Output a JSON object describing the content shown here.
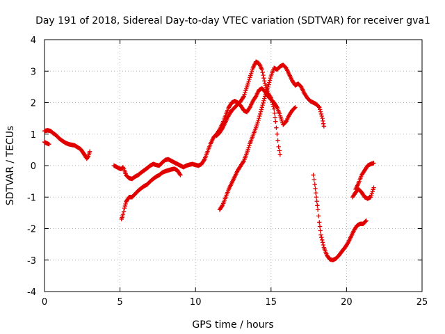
{
  "chart_data": {
    "type": "scatter",
    "title": "Day 191 of 2018, Sidereal Day-to-day VTEC variation (SDTVAR) for receiver gva1",
    "xlabel": "GPS time / hours",
    "ylabel": "SDTVAR / TECUs",
    "xlim": [
      0,
      25
    ],
    "ylim": [
      -4,
      4
    ],
    "xticks": [
      0,
      5,
      10,
      15,
      20,
      25
    ],
    "yticks": [
      -4,
      -3,
      -2,
      -1,
      0,
      1,
      2,
      3,
      4
    ],
    "grid": true,
    "marker": "plus",
    "color": "#e00000",
    "segments": [
      [
        [
          0.0,
          1.1
        ],
        [
          0.2,
          1.12
        ],
        [
          0.4,
          1.1
        ],
        [
          0.6,
          1.02
        ],
        [
          0.8,
          0.95
        ],
        [
          1.0,
          0.85
        ],
        [
          1.2,
          0.78
        ],
        [
          1.4,
          0.72
        ],
        [
          1.6,
          0.68
        ],
        [
          1.8,
          0.66
        ],
        [
          2.0,
          0.64
        ],
        [
          2.2,
          0.58
        ],
        [
          2.4,
          0.52
        ],
        [
          2.5,
          0.45
        ],
        [
          2.6,
          0.38
        ],
        [
          2.7,
          0.3
        ],
        [
          2.8,
          0.22
        ],
        [
          2.9,
          0.3
        ],
        [
          3.0,
          0.45
        ]
      ],
      [
        [
          0.0,
          0.75
        ],
        [
          0.1,
          0.72
        ],
        [
          0.2,
          0.7
        ],
        [
          0.3,
          0.68
        ]
      ],
      [
        [
          4.6,
          0.0
        ],
        [
          4.8,
          -0.05
        ],
        [
          5.0,
          -0.1
        ],
        [
          5.1,
          -0.1
        ],
        [
          5.2,
          -0.05
        ],
        [
          5.3,
          -0.15
        ],
        [
          5.4,
          -0.3
        ],
        [
          5.6,
          -0.4
        ],
        [
          5.8,
          -0.42
        ],
        [
          6.0,
          -0.35
        ],
        [
          6.2,
          -0.3
        ],
        [
          6.4,
          -0.22
        ],
        [
          6.6,
          -0.15
        ],
        [
          6.8,
          -0.08
        ],
        [
          7.0,
          0.0
        ],
        [
          7.2,
          0.05
        ],
        [
          7.4,
          0.02
        ],
        [
          7.6,
          0.0
        ],
        [
          7.8,
          0.1
        ],
        [
          8.0,
          0.18
        ],
        [
          8.2,
          0.2
        ],
        [
          8.4,
          0.15
        ],
        [
          8.6,
          0.1
        ],
        [
          8.8,
          0.05
        ],
        [
          9.0,
          0.0
        ],
        [
          9.2,
          -0.05
        ],
        [
          9.4,
          0.0
        ],
        [
          9.6,
          0.03
        ],
        [
          9.8,
          0.05
        ],
        [
          10.0,
          0.02
        ],
        [
          10.2,
          0.0
        ],
        [
          10.4,
          0.05
        ],
        [
          10.6,
          0.2
        ],
        [
          10.8,
          0.45
        ],
        [
          11.0,
          0.7
        ],
        [
          11.2,
          0.9
        ],
        [
          11.4,
          1.0
        ],
        [
          11.6,
          1.15
        ],
        [
          11.8,
          1.35
        ],
        [
          12.0,
          1.6
        ],
        [
          12.2,
          1.85
        ],
        [
          12.4,
          2.0
        ],
        [
          12.6,
          2.05
        ],
        [
          12.8,
          2.0
        ],
        [
          13.0,
          1.9
        ],
        [
          13.2,
          1.75
        ],
        [
          13.4,
          1.7
        ],
        [
          13.6,
          1.85
        ],
        [
          13.8,
          2.05
        ],
        [
          14.0,
          2.2
        ],
        [
          14.2,
          2.4
        ],
        [
          14.4,
          2.45
        ],
        [
          14.6,
          2.35
        ],
        [
          14.8,
          2.2
        ],
        [
          15.0,
          2.1
        ],
        [
          15.2,
          2.0
        ],
        [
          15.4,
          1.85
        ],
        [
          15.6,
          1.6
        ],
        [
          15.8,
          1.3
        ],
        [
          16.0,
          1.4
        ],
        [
          16.2,
          1.6
        ],
        [
          16.4,
          1.75
        ],
        [
          16.6,
          1.85
        ]
      ],
      [
        [
          5.1,
          -1.7
        ],
        [
          5.2,
          -1.55
        ],
        [
          5.3,
          -1.35
        ],
        [
          5.4,
          -1.15
        ],
        [
          5.6,
          -1.0
        ],
        [
          5.8,
          -1.0
        ],
        [
          6.0,
          -0.9
        ],
        [
          6.2,
          -0.8
        ],
        [
          6.4,
          -0.72
        ],
        [
          6.6,
          -0.65
        ],
        [
          6.8,
          -0.6
        ],
        [
          7.0,
          -0.5
        ],
        [
          7.2,
          -0.42
        ],
        [
          7.4,
          -0.35
        ],
        [
          7.6,
          -0.3
        ],
        [
          7.8,
          -0.22
        ],
        [
          8.0,
          -0.18
        ],
        [
          8.2,
          -0.15
        ],
        [
          8.4,
          -0.12
        ],
        [
          8.6,
          -0.1
        ],
        [
          8.8,
          -0.15
        ],
        [
          9.0,
          -0.3
        ]
      ],
      [
        [
          11.6,
          -1.4
        ],
        [
          11.8,
          -1.25
        ],
        [
          12.0,
          -1.0
        ],
        [
          12.2,
          -0.75
        ],
        [
          12.4,
          -0.55
        ],
        [
          12.6,
          -0.35
        ],
        [
          12.8,
          -0.15
        ],
        [
          13.0,
          0.0
        ],
        [
          13.2,
          0.15
        ],
        [
          13.4,
          0.4
        ],
        [
          13.6,
          0.7
        ],
        [
          13.8,
          0.95
        ],
        [
          14.0,
          1.2
        ],
        [
          14.2,
          1.5
        ],
        [
          14.4,
          1.85
        ],
        [
          14.6,
          2.2
        ],
        [
          14.8,
          2.5
        ],
        [
          15.0,
          2.85
        ],
        [
          15.2,
          3.1
        ],
        [
          15.4,
          3.05
        ],
        [
          15.6,
          3.15
        ],
        [
          15.8,
          3.2
        ],
        [
          16.0,
          3.1
        ],
        [
          16.2,
          2.9
        ],
        [
          16.4,
          2.7
        ],
        [
          16.6,
          2.55
        ],
        [
          16.8,
          2.6
        ],
        [
          17.0,
          2.5
        ],
        [
          17.2,
          2.3
        ],
        [
          17.4,
          2.15
        ],
        [
          17.6,
          2.05
        ],
        [
          17.8,
          2.0
        ],
        [
          18.0,
          1.95
        ],
        [
          18.2,
          1.85
        ],
        [
          18.4,
          1.5
        ],
        [
          18.5,
          1.25
        ]
      ],
      [
        [
          11.4,
          0.95
        ],
        [
          11.6,
          1.05
        ],
        [
          11.8,
          1.2
        ],
        [
          12.0,
          1.4
        ],
        [
          12.2,
          1.6
        ],
        [
          12.4,
          1.75
        ],
        [
          12.6,
          1.85
        ],
        [
          12.8,
          1.95
        ],
        [
          13.0,
          2.05
        ],
        [
          13.2,
          2.2
        ],
        [
          13.4,
          2.5
        ],
        [
          13.6,
          2.8
        ],
        [
          13.8,
          3.1
        ],
        [
          14.0,
          3.3
        ],
        [
          14.2,
          3.25
        ],
        [
          14.4,
          3.05
        ],
        [
          14.6,
          2.6
        ],
        [
          14.8,
          2.3
        ],
        [
          15.0,
          2.15
        ],
        [
          15.2,
          1.8
        ],
        [
          15.3,
          1.4
        ],
        [
          15.4,
          1.0
        ],
        [
          15.5,
          0.6
        ],
        [
          15.6,
          0.35
        ]
      ],
      [
        [
          17.8,
          -0.3
        ],
        [
          17.9,
          -0.6
        ],
        [
          18.0,
          -1.0
        ],
        [
          18.1,
          -1.4
        ],
        [
          18.2,
          -1.8
        ],
        [
          18.3,
          -2.2
        ],
        [
          18.5,
          -2.6
        ],
        [
          18.7,
          -2.85
        ],
        [
          18.9,
          -2.98
        ],
        [
          19.1,
          -3.0
        ],
        [
          19.3,
          -2.95
        ],
        [
          19.5,
          -2.85
        ],
        [
          19.7,
          -2.72
        ],
        [
          19.9,
          -2.6
        ],
        [
          20.1,
          -2.45
        ],
        [
          20.3,
          -2.25
        ],
        [
          20.5,
          -2.05
        ],
        [
          20.7,
          -1.9
        ],
        [
          20.9,
          -1.85
        ],
        [
          21.1,
          -1.85
        ],
        [
          21.3,
          -1.75
        ]
      ],
      [
        [
          20.4,
          -1.0
        ],
        [
          20.6,
          -0.85
        ],
        [
          20.8,
          -0.75
        ],
        [
          21.0,
          -0.85
        ],
        [
          21.2,
          -1.0
        ],
        [
          21.4,
          -1.05
        ],
        [
          21.6,
          -1.0
        ],
        [
          21.8,
          -0.7
        ]
      ],
      [
        [
          20.6,
          -0.75
        ],
        [
          20.8,
          -0.55
        ],
        [
          21.0,
          -0.3
        ],
        [
          21.2,
          -0.15
        ],
        [
          21.4,
          0.0
        ],
        [
          21.6,
          0.05
        ],
        [
          21.8,
          0.08
        ]
      ]
    ]
  }
}
